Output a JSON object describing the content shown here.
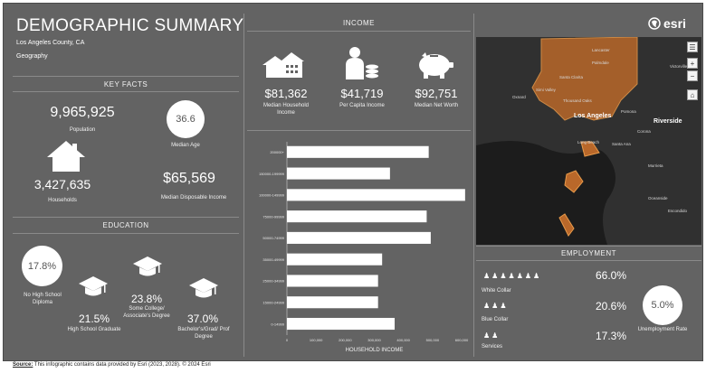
{
  "header": {
    "title": "DEMOGRAPHIC SUMMARY",
    "subtitle": "Los Angeles County, CA",
    "geography": "Geography",
    "logo": "esri"
  },
  "key_facts": {
    "heading": "KEY FACTS",
    "population_value": "9,965,925",
    "population_label": "Population",
    "median_age_value": "36.6",
    "median_age_label": "Median Age",
    "households_value": "3,427,635",
    "households_label": "Households",
    "income_value": "$65,569",
    "income_label": "Median Disposable Income"
  },
  "education": {
    "heading": "EDUCATION",
    "no_hs_value": "17.8%",
    "no_hs_label": "No High School Diploma",
    "hs_value": "21.5%",
    "hs_label": "High School Graduate",
    "some_college_value": "23.8%",
    "some_college_label": "Some College/ Associate's Degree",
    "bachelor_value": "37.0%",
    "bachelor_label": "Bachelor's/Grad/ Prof Degree"
  },
  "income": {
    "heading": "INCOME",
    "household_value": "$81,362",
    "household_label": "Median Household Income",
    "per_capita_value": "$41,719",
    "per_capita_label": "Per Capita Income",
    "net_worth_value": "$92,751",
    "net_worth_label": "Median Net Worth"
  },
  "chart_data": {
    "type": "bar",
    "orientation": "horizontal",
    "categories": [
      "200000+",
      "150000-199999",
      "100000-149999",
      "75000-99999",
      "50000-74999",
      "35000-49999",
      "25000-34999",
      "15000-24999",
      "0-14999"
    ],
    "values": [
      487000,
      354000,
      612000,
      480000,
      494000,
      327000,
      313000,
      313000,
      370000
    ],
    "xlabel": "HOUSEHOLD INCOME",
    "xticks": [
      "0",
      "100,000",
      "200,000",
      "300,000",
      "400,000",
      "500,000",
      "600,000"
    ],
    "xlim": [
      0,
      600000
    ],
    "bar_color": "#ffffff"
  },
  "employment": {
    "heading": "EMPLOYMENT",
    "white_collar_value": "66.0%",
    "white_collar_label": "White Collar",
    "blue_collar_value": "20.6%",
    "blue_collar_label": "Blue Collar",
    "services_value": "17.3%",
    "services_label": "Services",
    "unemployment_value": "5.0%",
    "unemployment_label": "Unemployment Rate"
  },
  "map": {
    "labels": [
      "Lancaster",
      "Palmdale",
      "Santa Clarita",
      "Simi Valley",
      "Thousand Oaks",
      "Oxnard",
      "Los Angeles",
      "Pomona",
      "Riverside",
      "Corona",
      "Long Beach",
      "Santa Ana",
      "Murrieta",
      "Oceanside",
      "Escondido",
      "Victorville"
    ],
    "boundary_color": "#d98a3a"
  },
  "footer": {
    "source_label": "Source:",
    "source_text": "This infographic contains data provided by Esri (2023, 2028). © 2024 Esri"
  }
}
